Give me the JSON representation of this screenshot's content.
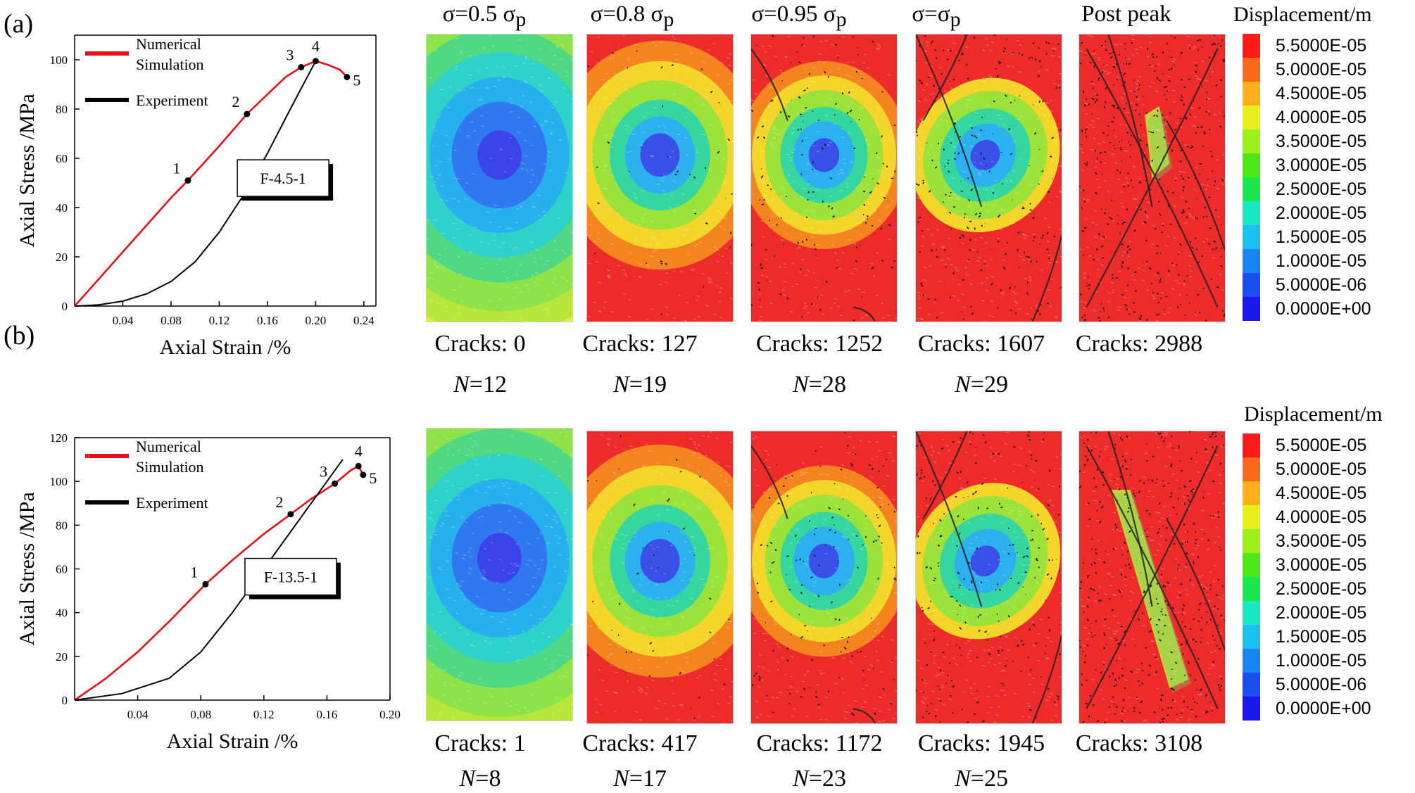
{
  "panel_labels": [
    "(a)",
    "(b)"
  ],
  "stages": [
    "σ=0.5 σp",
    "σ=0.8 σp",
    "σ=0.95 σp",
    "σ=σp",
    "Post peak"
  ],
  "legend": {
    "title": "Displacement/m",
    "values": [
      "5.5000E-05",
      "5.0000E-05",
      "4.5000E-05",
      "4.0000E-05",
      "3.5000E-05",
      "3.0000E-05",
      "2.5000E-05",
      "2.0000E-05",
      "1.5000E-05",
      "1.0000E-05",
      "5.0000E-06",
      "0.0000E+00"
    ],
    "colors": [
      "#ff1a1a",
      "#ff6a1a",
      "#ffaf1a",
      "#e8f01a",
      "#9ef01a",
      "#4ee81a",
      "#1ae84e",
      "#1ae8c0",
      "#1ac0f0",
      "#1a84f0",
      "#1a4ef0",
      "#1a1af0"
    ]
  },
  "row_a": {
    "cracks": [
      "Cracks: 0",
      "Cracks: 127",
      "Cracks: 1252",
      "Cracks: 1607",
      "Cracks: 2988"
    ],
    "n": [
      "12",
      "19",
      "28",
      "29"
    ],
    "n_prefix": "N",
    "n_eq": "="
  },
  "row_b": {
    "cracks": [
      "Cracks: 1",
      "Cracks: 417",
      "Cracks: 1172",
      "Cracks: 1945",
      "Cracks: 3108"
    ],
    "n": [
      "8",
      "17",
      "23",
      "25"
    ],
    "n_prefix": "N",
    "n_eq": "="
  },
  "chart_data": [
    {
      "type": "line",
      "panel": "(a)",
      "xlabel": "Axial Strain /%",
      "ylabel": "Axial Stress /MPa",
      "xlim": [
        0,
        0.25
      ],
      "ylim": [
        0,
        110
      ],
      "xticks": [
        "0.04",
        "0.08",
        "0.12",
        "0.16",
        "0.20",
        "0.24"
      ],
      "yticks": [
        "0",
        "20",
        "40",
        "60",
        "80",
        "100"
      ],
      "legend": [
        "Numerical Simulation",
        "Experiment"
      ],
      "legend_line1": "Numerical",
      "legend_line2": "Simulation",
      "annotation": "F-4.5-1",
      "series": [
        {
          "name": "Numerical Simulation",
          "color": "#e8101a",
          "x": [
            0,
            0.04,
            0.08,
            0.094,
            0.12,
            0.143,
            0.16,
            0.175,
            0.188,
            0.2,
            0.21,
            0.22,
            0.226
          ],
          "y": [
            0,
            22,
            44,
            51,
            65,
            78,
            86,
            93,
            97,
            99.5,
            98,
            96,
            93
          ]
        },
        {
          "name": "Experiment",
          "color": "#000000",
          "x": [
            0,
            0.02,
            0.04,
            0.06,
            0.08,
            0.1,
            0.12,
            0.14,
            0.16,
            0.18,
            0.2
          ],
          "y": [
            0,
            0.5,
            2,
            5,
            10,
            18,
            30,
            45,
            62,
            81,
            99.5
          ]
        }
      ],
      "points": [
        {
          "label": "1",
          "x": 0.094,
          "y": 51
        },
        {
          "label": "2",
          "x": 0.143,
          "y": 78
        },
        {
          "label": "3",
          "x": 0.188,
          "y": 97
        },
        {
          "label": "4",
          "x": 0.2,
          "y": 99.5
        },
        {
          "label": "5",
          "x": 0.226,
          "y": 93
        }
      ]
    },
    {
      "type": "line",
      "panel": "(b)",
      "xlabel": "Axial Strain /%",
      "ylabel": "Axial Stress /MPa",
      "xlim": [
        0,
        0.2
      ],
      "ylim": [
        0,
        120
      ],
      "xticks": [
        "0.04",
        "0.08",
        "0.12",
        "0.16",
        "0.20"
      ],
      "yticks": [
        "0",
        "20",
        "40",
        "60",
        "80",
        "100",
        "120"
      ],
      "legend": [
        "Numerical Simulation",
        "Experiment"
      ],
      "legend_line1": "Numerical",
      "legend_line2": "Simulation",
      "annotation": "F-13.5-1",
      "series": [
        {
          "name": "Numerical Simulation",
          "color": "#e8101a",
          "x": [
            0,
            0.02,
            0.04,
            0.06,
            0.083,
            0.1,
            0.12,
            0.137,
            0.15,
            0.165,
            0.175,
            0.18,
            0.183
          ],
          "y": [
            0,
            10,
            22,
            36,
            53,
            64,
            76,
            85,
            92,
            99,
            105,
            107,
            103
          ]
        },
        {
          "name": "Experiment",
          "color": "#000000",
          "x": [
            0,
            0.03,
            0.06,
            0.08,
            0.1,
            0.12,
            0.14,
            0.16,
            0.17
          ],
          "y": [
            0,
            3,
            10,
            22,
            40,
            60,
            80,
            100,
            110
          ]
        }
      ],
      "points": [
        {
          "label": "1",
          "x": 0.083,
          "y": 53
        },
        {
          "label": "2",
          "x": 0.137,
          "y": 85
        },
        {
          "label": "3",
          "x": 0.165,
          "y": 99
        },
        {
          "label": "4",
          "x": 0.18,
          "y": 107
        },
        {
          "label": "5",
          "x": 0.183,
          "y": 103
        }
      ]
    }
  ]
}
